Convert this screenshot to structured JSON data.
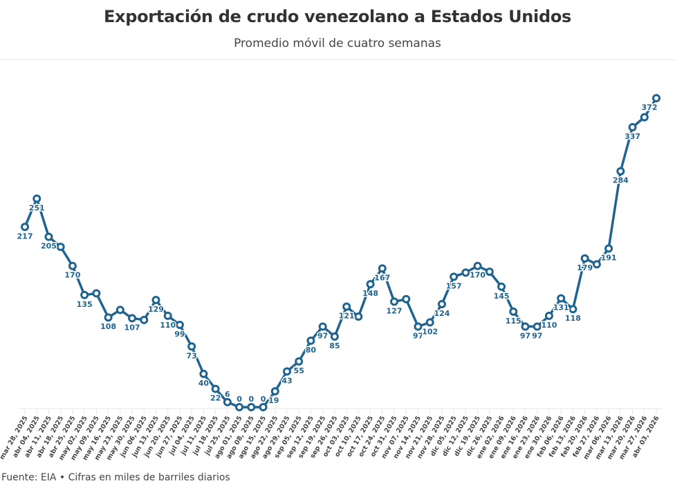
{
  "header": {
    "title": "Exportación de crudo venezolano a Estados Unidos",
    "subtitle": "Promedio móvil de cuatro semanas"
  },
  "footer": {
    "source": "Fuente: EIA • Cifras en miles de barriles diarios"
  },
  "chart_data": {
    "type": "line",
    "title": "Exportación de crudo venezolano a Estados Unidos",
    "subtitle": "Promedio móvil de cuatro semanas",
    "xlabel": "",
    "ylabel": "",
    "ylim": [
      0,
      380
    ],
    "grid": false,
    "line_color": "#1f6391",
    "categories": [
      "mar 28, 2025",
      "abr 04, 2025",
      "abr 11, 2025",
      "abr 18, 2025",
      "abr 25, 2025",
      "may 02, 2025",
      "may 09, 2025",
      "may 16, 2025",
      "may 23, 2025",
      "may 30, 2025",
      "jun 06, 2025",
      "jun 13, 2025",
      "jun 20, 2025",
      "jun 27, 2025",
      "jul 04, 2025",
      "jul 11, 2025",
      "jul 18, 2025",
      "jul 25, 2025",
      "ago 01, 2025",
      "ago 08, 2025",
      "ago 15, 2025",
      "ago 22, 2025",
      "ago 29, 2025",
      "sep 05, 2025",
      "sep 12, 2025",
      "sep 19, 2025",
      "sep 26, 2025",
      "oct 03, 2025",
      "oct 10, 2025",
      "oct 17, 2025",
      "oct 24, 2025",
      "oct 31, 2025",
      "nov 07, 2025",
      "nov 14, 2025",
      "nov 21, 2025",
      "nov 28, 2025",
      "dic 05, 2025",
      "dic 12, 2025",
      "dic 19, 2025",
      "dic 26, 2025",
      "ene 02, 2026",
      "ene 09, 2026",
      "ene 16, 2026",
      "ene 23, 2026",
      "ene 30, 2026",
      "feb 06, 2026",
      "feb 13, 2026",
      "feb 20, 2026",
      "feb 27, 2026",
      "mar 06, 2026",
      "mar 13, 2026",
      "mar 20, 2026",
      "mar 27, 2026",
      "abr 03, 2026"
    ],
    "values": [
      217,
      251,
      205,
      193,
      170,
      135,
      137,
      108,
      117,
      107,
      105,
      129,
      110,
      99,
      73,
      40,
      22,
      6,
      0,
      0,
      0,
      19,
      43,
      55,
      80,
      97,
      85,
      121,
      109,
      148,
      167,
      127,
      130,
      97,
      102,
      124,
      157,
      162,
      170,
      163,
      145,
      115,
      97,
      97,
      110,
      131,
      118,
      179,
      172,
      191,
      284,
      337,
      349,
      372
    ],
    "data_labels": [
      "217",
      "251",
      "205",
      null,
      "170",
      "135",
      null,
      "108",
      null,
      "107",
      null,
      "129",
      "110",
      "99",
      "73",
      "40",
      "22",
      "6",
      "0",
      "0",
      "0",
      "19",
      "43",
      "55",
      "80",
      "97",
      "85",
      "121",
      null,
      "148",
      "167",
      "127",
      null,
      "97",
      "102",
      "124",
      "157",
      null,
      "170",
      null,
      "145",
      "115",
      "97",
      "97",
      "110",
      "131",
      "118",
      "179",
      null,
      "191",
      "284",
      "337",
      null,
      "372"
    ]
  }
}
